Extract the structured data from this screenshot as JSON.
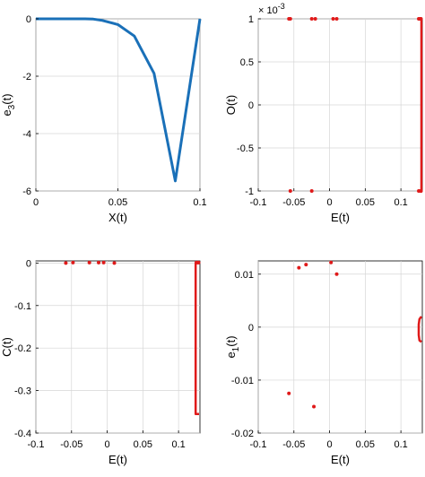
{
  "chart_data": [
    {
      "type": "line",
      "xlabel": "X(t)",
      "ylabel": "e3(t)",
      "ylabel_main": "e",
      "ylabel_sub": "3",
      "ylabel_tail": "(t)",
      "xlim": [
        0,
        0.1
      ],
      "ylim": [
        -6,
        0
      ],
      "xticks": [
        0,
        0.05,
        0.1
      ],
      "xtick_labels": [
        "0",
        "0.05",
        "0.1"
      ],
      "yticks": [
        0,
        -2,
        -4,
        -6
      ],
      "ytick_labels": [
        "0",
        "-2",
        "-4",
        "-6"
      ],
      "grid": true,
      "color": "#1a70b8",
      "series": [
        {
          "x": [
            0,
            0.01,
            0.02,
            0.03,
            0.035,
            0.04,
            0.05,
            0.06,
            0.072,
            0.085,
            0.1
          ],
          "y": [
            0,
            0,
            0,
            0,
            -0.01,
            -0.05,
            -0.2,
            -0.6,
            -1.9,
            -5.65,
            0
          ]
        }
      ]
    },
    {
      "type": "scatter",
      "xlabel": "E(t)",
      "ylabel": "O(t)",
      "xlim": [
        -0.1,
        0.13
      ],
      "ylim": [
        -1,
        1
      ],
      "xticks": [
        -0.1,
        -0.05,
        0,
        0.05,
        0.1
      ],
      "xtick_labels": [
        "-0.1",
        "-0.05",
        "0",
        "0.05",
        "0.1"
      ],
      "yticks": [
        1,
        0.5,
        0,
        -0.5,
        -1
      ],
      "ytick_labels": [
        "1",
        "0.5",
        "0",
        "-0.5",
        "-1"
      ],
      "exponent_label": "× 10",
      "exponent_power": "-3",
      "grid": true,
      "color": "#e01a1a",
      "points": {
        "x": [
          -0.057,
          -0.055,
          -0.025,
          -0.02,
          0.005,
          0.01,
          0.125,
          0.127,
          0.129,
          -0.055,
          -0.025,
          0.125,
          0.128,
          0.13
        ],
        "y": [
          1,
          1,
          1,
          1,
          1,
          1,
          1,
          1,
          1,
          -1,
          -1,
          -1,
          -1,
          -1
        ]
      },
      "edge_line": {
        "x": 0.13,
        "y": [
          -1,
          1
        ]
      }
    },
    {
      "type": "scatter",
      "xlabel": "E(t)",
      "ylabel": "C(t)",
      "xlim": [
        -0.1,
        0.13
      ],
      "ylim": [
        -0.4,
        0.005
      ],
      "xticks": [
        -0.1,
        -0.05,
        0,
        0.05,
        0.1
      ],
      "xtick_labels": [
        "-0.1",
        "-0.05",
        "0",
        "0.05",
        "0.1"
      ],
      "yticks": [
        0,
        -0.1,
        -0.2,
        -0.3,
        -0.4
      ],
      "ytick_labels": [
        "0",
        "-0.1",
        "-0.2",
        "-0.3",
        "-0.4"
      ],
      "grid": true,
      "color": "#e01a1a",
      "points": {
        "x": [
          -0.058,
          -0.048,
          -0.025,
          -0.012,
          -0.005,
          0.01,
          0.125,
          0.127,
          0.129
        ],
        "y": [
          0,
          0.001,
          0.001,
          0.001,
          0.001,
          0.0,
          0.001,
          0.001,
          0.001
        ]
      },
      "curve": {
        "x": [
          0.13,
          0.124,
          0.124,
          0.124,
          0.13
        ],
        "y": [
          0.001,
          0.0,
          -0.15,
          -0.355,
          -0.355
        ]
      }
    },
    {
      "type": "scatter",
      "xlabel": "E(t)",
      "ylabel": "e1(t)",
      "ylabel_main": "e",
      "ylabel_sub": "1",
      "ylabel_tail": "(t)",
      "xlim": [
        -0.1,
        0.13
      ],
      "ylim": [
        -0.02,
        0.0125
      ],
      "xticks": [
        -0.1,
        -0.05,
        0,
        0.05,
        0.1
      ],
      "xtick_labels": [
        "-0.1",
        "-0.05",
        "0",
        "0.05",
        "0.1"
      ],
      "yticks": [
        0.01,
        0,
        -0.01,
        -0.02
      ],
      "ytick_labels": [
        "0.01",
        "0",
        "-0.01",
        "-0.02"
      ],
      "grid": true,
      "color": "#e01a1a",
      "points": {
        "x": [
          -0.057,
          -0.043,
          -0.033,
          -0.022,
          0.01,
          0.002
        ],
        "y": [
          -0.0125,
          0.0112,
          0.0118,
          -0.015,
          0.01,
          0.0122
        ]
      },
      "curve": {
        "x": [
          0.13,
          0.126,
          0.125,
          0.125,
          0.126,
          0.13
        ],
        "y": [
          0.002,
          0.0015,
          0.0005,
          -0.0015,
          -0.0025,
          -0.0028
        ]
      }
    }
  ]
}
